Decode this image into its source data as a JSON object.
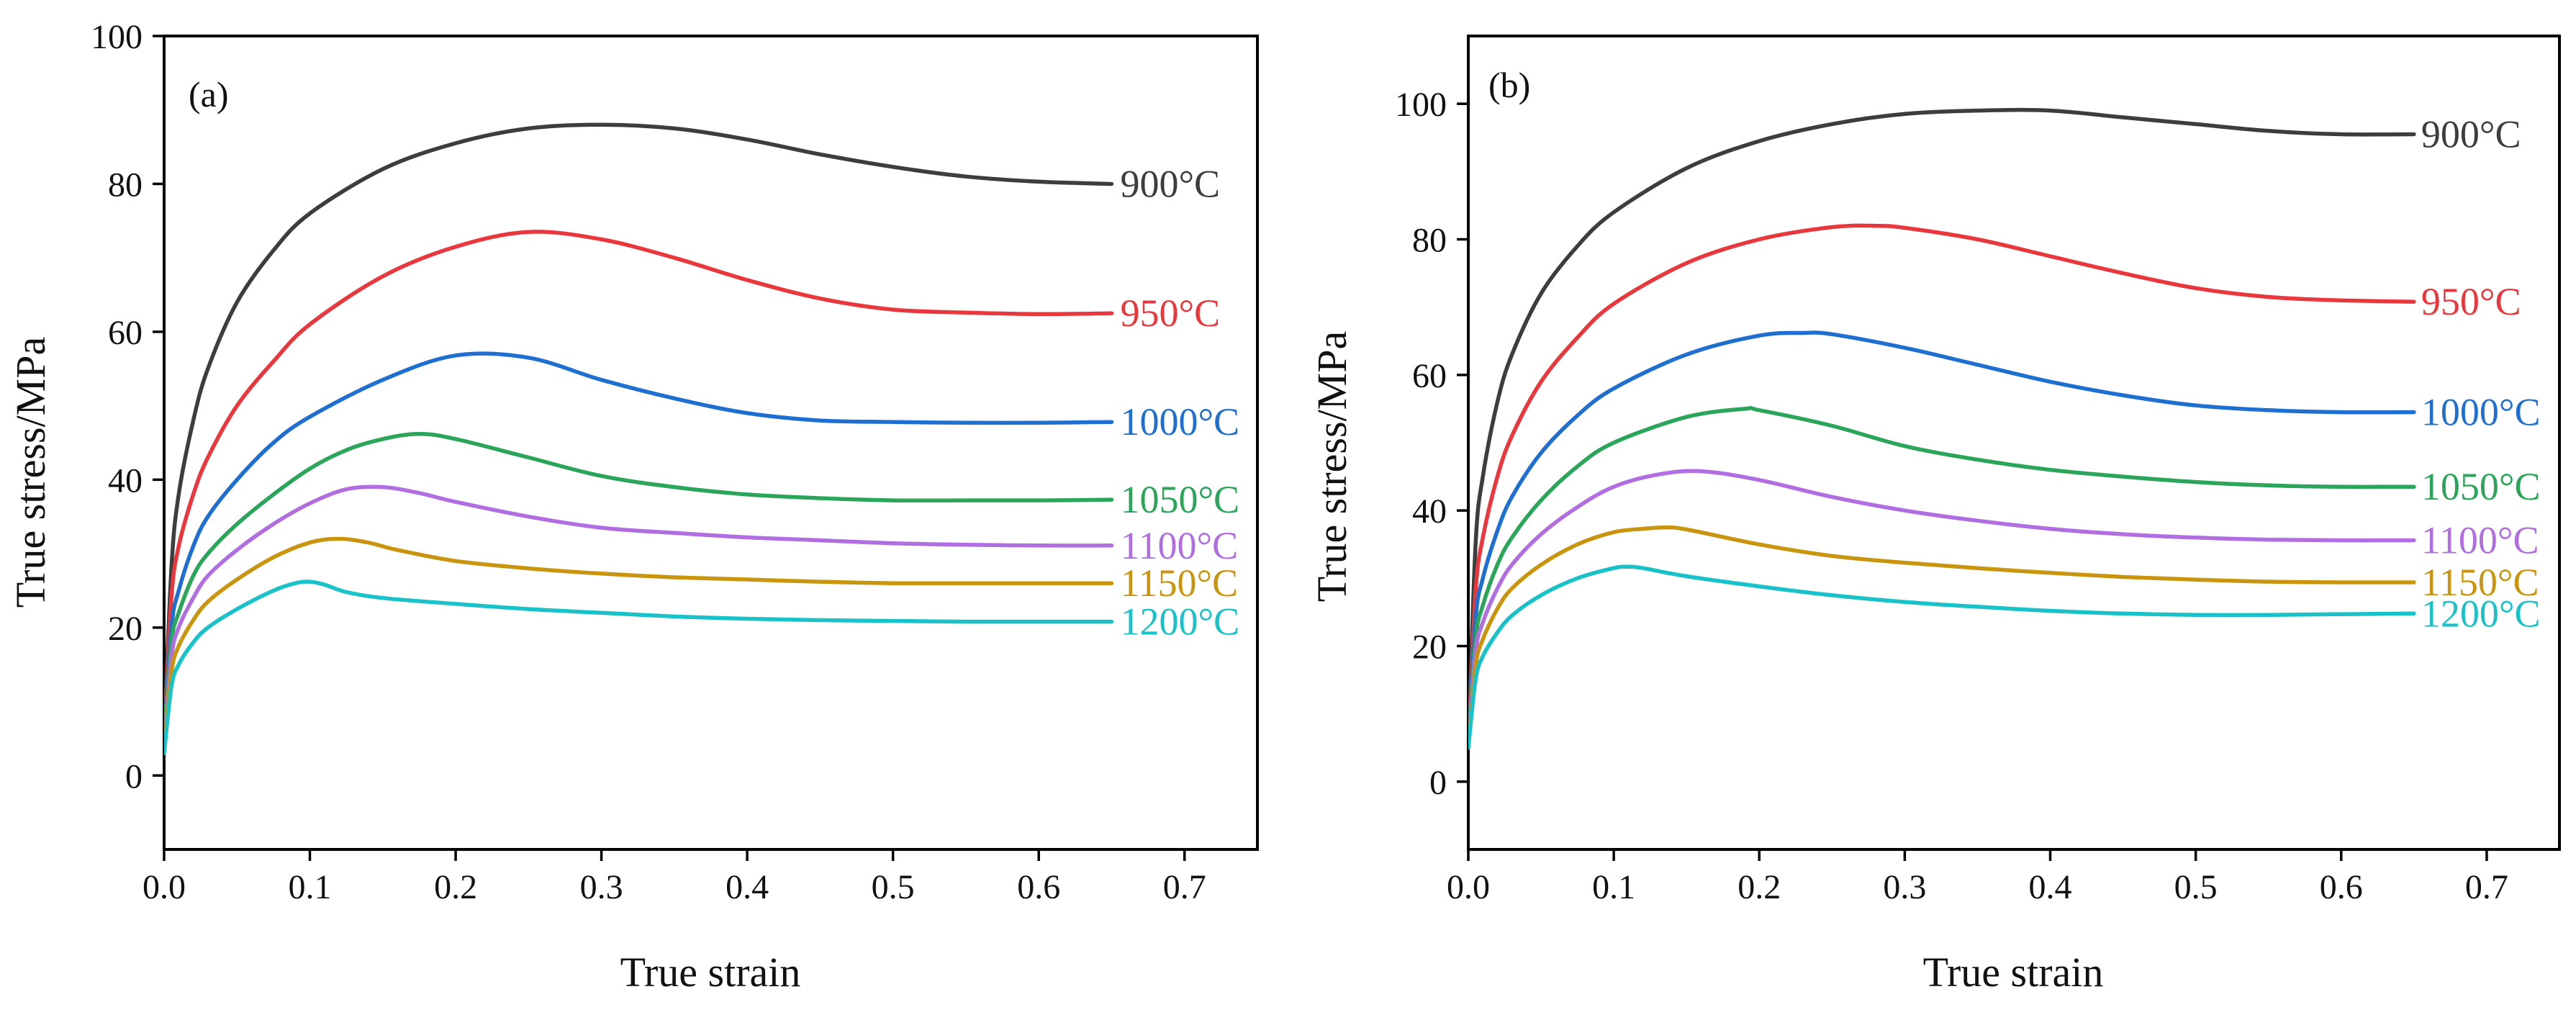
{
  "chart_data": [
    {
      "type": "line",
      "panel_label": "(a)",
      "xlabel": "True strain",
      "ylabel": "True stress/MPa",
      "xlim": [
        0,
        0.75
      ],
      "ylim": [
        -10,
        100
      ],
      "xticks": [
        0.0,
        0.1,
        0.2,
        0.3,
        0.4,
        0.5,
        0.6,
        0.7
      ],
      "xtick_labels": [
        "0.0",
        "0.1",
        "0.2",
        "0.3",
        "0.4",
        "0.5",
        "0.6",
        "0.7"
      ],
      "yticks": [
        0,
        20,
        40,
        60,
        80,
        100
      ],
      "ytick_labels": [
        "0",
        "20",
        "40",
        "60",
        "80",
        "100"
      ],
      "grid": false,
      "series": [
        {
          "name": "900°C",
          "color": "#3d3d3d",
          "x": [
            0.0,
            0.005,
            0.01,
            0.02,
            0.03,
            0.05,
            0.075,
            0.1,
            0.15,
            0.2,
            0.25,
            0.3,
            0.35,
            0.4,
            0.45,
            0.5,
            0.55,
            0.6,
            0.65
          ],
          "y": [
            5,
            28,
            38,
            48,
            55,
            64,
            71,
            76,
            82,
            85.5,
            87.5,
            88,
            87.5,
            86,
            84,
            82.3,
            81,
            80.3,
            80
          ]
        },
        {
          "name": "950°C",
          "color": "#e8383d",
          "x": [
            0.0,
            0.005,
            0.01,
            0.02,
            0.03,
            0.05,
            0.075,
            0.1,
            0.15,
            0.2,
            0.25,
            0.3,
            0.35,
            0.4,
            0.45,
            0.5,
            0.55,
            0.6,
            0.65
          ],
          "y": [
            5,
            24,
            31,
            38,
            43,
            50,
            56,
            61,
            67.5,
            71.5,
            73.5,
            72.5,
            70,
            67,
            64.5,
            63,
            62.6,
            62.4,
            62.5
          ]
        },
        {
          "name": "1000°C",
          "color": "#1f6fd0",
          "x": [
            0.0,
            0.005,
            0.01,
            0.02,
            0.03,
            0.05,
            0.075,
            0.1,
            0.15,
            0.2,
            0.25,
            0.3,
            0.35,
            0.4,
            0.45,
            0.5,
            0.55,
            0.6,
            0.65
          ],
          "y": [
            5,
            20,
            25,
            31,
            35,
            40,
            45,
            48.5,
            53.5,
            56.8,
            56.5,
            53.5,
            51,
            49,
            48,
            47.8,
            47.7,
            47.7,
            47.8
          ]
        },
        {
          "name": "1050°C",
          "color": "#2aa55a",
          "x": [
            0.0,
            0.005,
            0.01,
            0.02,
            0.03,
            0.05,
            0.075,
            0.1,
            0.125,
            0.15,
            0.175,
            0.2,
            0.25,
            0.3,
            0.35,
            0.4,
            0.45,
            0.5,
            0.55,
            0.6,
            0.65
          ],
          "y": [
            5,
            18,
            22,
            27,
            30,
            34,
            38,
            41.5,
            44,
            45.5,
            46.2,
            45.5,
            43,
            40.5,
            39,
            38,
            37.5,
            37.2,
            37.2,
            37.2,
            37.3
          ]
        },
        {
          "name": "1100°C",
          "color": "#b06ee0",
          "x": [
            0.0,
            0.005,
            0.01,
            0.02,
            0.03,
            0.05,
            0.075,
            0.1,
            0.125,
            0.15,
            0.175,
            0.2,
            0.25,
            0.3,
            0.35,
            0.4,
            0.45,
            0.5,
            0.55,
            0.6,
            0.65
          ],
          "y": [
            4,
            16,
            20,
            24,
            27,
            30.5,
            34,
            36.8,
            38.7,
            39,
            38.2,
            37,
            35,
            33.5,
            32.8,
            32.2,
            31.8,
            31.4,
            31.2,
            31.1,
            31.1
          ]
        },
        {
          "name": "1150°C",
          "color": "#c9950e",
          "x": [
            0.0,
            0.005,
            0.01,
            0.02,
            0.03,
            0.05,
            0.075,
            0.1,
            0.12,
            0.14,
            0.16,
            0.2,
            0.25,
            0.3,
            0.35,
            0.4,
            0.45,
            0.5,
            0.55,
            0.6,
            0.65
          ],
          "y": [
            4,
            14,
            17.5,
            21,
            23.5,
            26.5,
            29.5,
            31.5,
            32,
            31.5,
            30.5,
            29,
            28,
            27.3,
            26.8,
            26.5,
            26.2,
            26,
            26,
            26,
            26
          ]
        },
        {
          "name": "1200°C",
          "color": "#19c1c8",
          "x": [
            0.0,
            0.005,
            0.01,
            0.02,
            0.03,
            0.05,
            0.075,
            0.09,
            0.1,
            0.11,
            0.125,
            0.15,
            0.2,
            0.25,
            0.3,
            0.35,
            0.4,
            0.45,
            0.5,
            0.55,
            0.6,
            0.65
          ],
          "y": [
            3,
            12,
            15,
            18,
            20,
            22.5,
            25,
            26,
            26.2,
            25.8,
            24.8,
            24,
            23.2,
            22.5,
            22,
            21.5,
            21.2,
            21,
            20.9,
            20.8,
            20.8,
            20.8
          ]
        }
      ]
    },
    {
      "type": "line",
      "panel_label": "(b)",
      "xlabel": "True strain",
      "ylabel": "True stress/MPa",
      "xlim": [
        0,
        0.75
      ],
      "ylim": [
        -10,
        110
      ],
      "xticks": [
        0.0,
        0.1,
        0.2,
        0.3,
        0.4,
        0.5,
        0.6,
        0.7
      ],
      "xtick_labels": [
        "0.0",
        "0.1",
        "0.2",
        "0.3",
        "0.4",
        "0.5",
        "0.6",
        "0.7"
      ],
      "yticks": [
        0,
        20,
        40,
        60,
        80,
        100
      ],
      "ytick_labels": [
        "0",
        "20",
        "40",
        "60",
        "80",
        "100"
      ],
      "grid": false,
      "series": [
        {
          "name": "900°C",
          "color": "#3d3d3d",
          "x": [
            0.0,
            0.005,
            0.01,
            0.02,
            0.03,
            0.05,
            0.075,
            0.1,
            0.15,
            0.2,
            0.25,
            0.3,
            0.35,
            0.4,
            0.45,
            0.5,
            0.55,
            0.6,
            0.65
          ],
          "y": [
            5,
            35,
            45,
            56,
            63,
            72,
            79,
            84,
            90.5,
            94.5,
            97,
            98.5,
            99,
            99,
            98,
            97,
            96,
            95.5,
            95.5
          ]
        },
        {
          "name": "950°C",
          "color": "#e8383d",
          "x": [
            0.0,
            0.005,
            0.01,
            0.02,
            0.03,
            0.05,
            0.075,
            0.1,
            0.15,
            0.2,
            0.25,
            0.28,
            0.3,
            0.35,
            0.4,
            0.45,
            0.5,
            0.55,
            0.6,
            0.65
          ],
          "y": [
            5,
            28,
            36,
            45,
            51,
            59,
            65.5,
            70.5,
            76.5,
            80,
            81.8,
            82,
            81.7,
            80,
            77.5,
            75,
            72.8,
            71.5,
            71,
            70.8
          ]
        },
        {
          "name": "1000°C",
          "color": "#1f6fd0",
          "x": [
            0.0,
            0.005,
            0.01,
            0.02,
            0.03,
            0.05,
            0.075,
            0.1,
            0.15,
            0.2,
            0.23,
            0.25,
            0.3,
            0.35,
            0.4,
            0.45,
            0.5,
            0.55,
            0.6,
            0.65
          ],
          "y": [
            5,
            24,
            30,
            37,
            42,
            48.5,
            54,
            58,
            63,
            65.8,
            66.2,
            66,
            64,
            61.5,
            59,
            57,
            55.5,
            54.8,
            54.5,
            54.5
          ]
        },
        {
          "name": "1050°C",
          "color": "#2aa55a",
          "x": [
            0.0,
            0.005,
            0.01,
            0.02,
            0.03,
            0.05,
            0.075,
            0.1,
            0.15,
            0.19,
            0.2,
            0.25,
            0.3,
            0.35,
            0.4,
            0.45,
            0.5,
            0.55,
            0.6,
            0.65
          ],
          "y": [
            5,
            21,
            26,
            32,
            36,
            41.5,
            46.5,
            50,
            53.8,
            55,
            54.8,
            52.5,
            49.5,
            47.5,
            46,
            45,
            44.2,
            43.7,
            43.5,
            43.5
          ]
        },
        {
          "name": "1100°C",
          "color": "#b06ee0",
          "x": [
            0.0,
            0.005,
            0.01,
            0.02,
            0.03,
            0.05,
            0.075,
            0.1,
            0.13,
            0.16,
            0.2,
            0.25,
            0.3,
            0.35,
            0.4,
            0.45,
            0.5,
            0.55,
            0.6,
            0.65
          ],
          "y": [
            5,
            19,
            23.5,
            28.5,
            32,
            36.5,
            40.5,
            43.5,
            45.3,
            45.8,
            44.5,
            42,
            40,
            38.5,
            37.3,
            36.5,
            36,
            35.7,
            35.6,
            35.6
          ]
        },
        {
          "name": "1150°C",
          "color": "#c9950e",
          "x": [
            0.0,
            0.005,
            0.01,
            0.02,
            0.03,
            0.05,
            0.075,
            0.1,
            0.12,
            0.135,
            0.15,
            0.2,
            0.25,
            0.3,
            0.35,
            0.4,
            0.45,
            0.5,
            0.55,
            0.6,
            0.65
          ],
          "y": [
            5,
            17,
            21,
            25.5,
            28.5,
            32,
            35,
            36.8,
            37.3,
            37.5,
            37.2,
            35,
            33.3,
            32.3,
            31.5,
            30.8,
            30.2,
            29.8,
            29.5,
            29.4,
            29.4
          ]
        },
        {
          "name": "1200°C",
          "color": "#19c1c8",
          "x": [
            0.0,
            0.005,
            0.01,
            0.02,
            0.03,
            0.05,
            0.075,
            0.1,
            0.11,
            0.12,
            0.15,
            0.2,
            0.25,
            0.3,
            0.35,
            0.4,
            0.45,
            0.5,
            0.55,
            0.6,
            0.65
          ],
          "y": [
            5,
            15,
            18.5,
            22,
            24.5,
            27.5,
            30,
            31.5,
            31.7,
            31.5,
            30.3,
            28.8,
            27.5,
            26.5,
            25.8,
            25.2,
            24.8,
            24.6,
            24.6,
            24.7,
            24.8
          ]
        }
      ]
    }
  ]
}
